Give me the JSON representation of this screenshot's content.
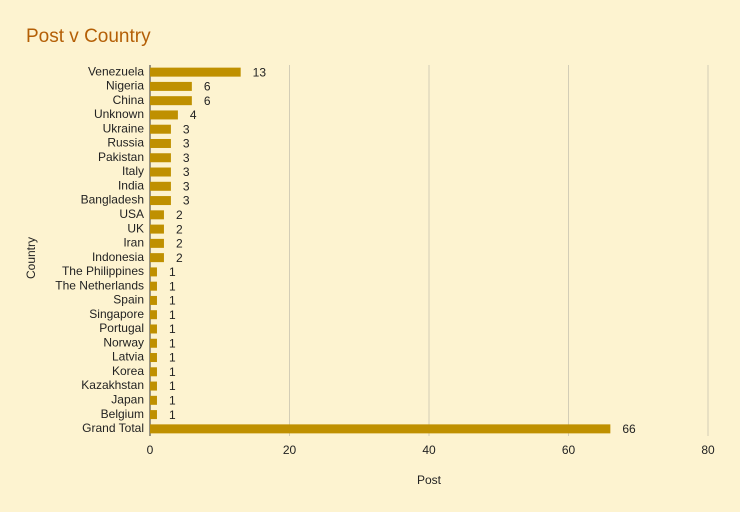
{
  "chart_data": {
    "type": "bar",
    "orientation": "horizontal",
    "title": "Post v Country",
    "x_label": "Post",
    "y_label": "Country",
    "categories": [
      "Venezuela",
      "Nigeria",
      "China",
      "Unknown",
      "Ukraine",
      "Russia",
      "Pakistan",
      "Italy",
      "India",
      "Bangladesh",
      "USA",
      "UK",
      "Iran",
      "Indonesia",
      "The Philippines",
      "The Netherlands",
      "Spain",
      "Singapore",
      "Portugal",
      "Norway",
      "Latvia",
      "Korea",
      "Kazakhstan",
      "Japan",
      "Belgium",
      "Grand Total"
    ],
    "values": [
      13,
      6,
      6,
      4,
      3,
      3,
      3,
      3,
      3,
      3,
      2,
      2,
      2,
      2,
      1,
      1,
      1,
      1,
      1,
      1,
      1,
      1,
      1,
      1,
      1,
      66
    ],
    "color": "#bf9000",
    "xlim": [
      0,
      80
    ],
    "xticks": [
      0,
      20,
      40,
      60,
      80
    ],
    "grid": true
  }
}
